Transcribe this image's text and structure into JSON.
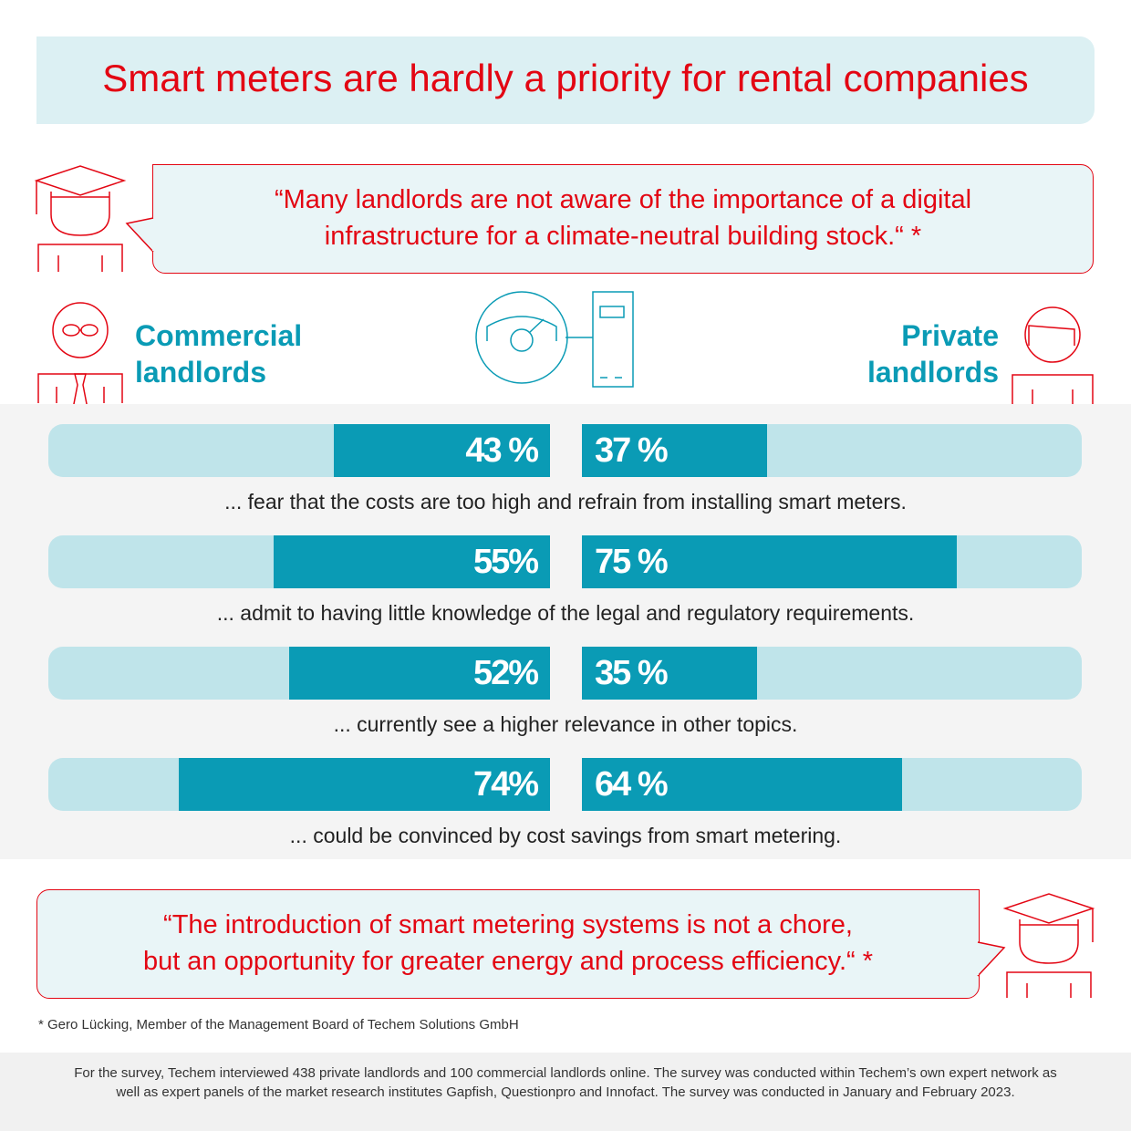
{
  "title": "Smart meters are hardly a priority for rental companies",
  "quote_top": {
    "line1": "“Many landlords are not aware of the importance of a digital",
    "line2": "infrastructure for a climate-neutral building stock.“ *"
  },
  "groups": {
    "left_line1": "Commercial",
    "left_line2": "landlords",
    "right_line1": "Private",
    "right_line2": "landlords"
  },
  "chart_data": {
    "type": "bar",
    "series": [
      {
        "name": "Commercial landlords",
        "values": [
          43,
          55,
          52,
          74
        ]
      },
      {
        "name": "Private landlords",
        "values": [
          37,
          75,
          35,
          64
        ]
      }
    ],
    "categories": [
      "... fear that the costs are too high and refrain from installing smart meters.",
      "... admit to having little knowledge of the legal and regulatory requirements.",
      "... currently see a higher relevance in other topics.",
      "... could be convinced by cost savings from smart metering."
    ],
    "labels_left": [
      "43 %",
      "55%",
      "52%",
      "74%"
    ],
    "labels_right": [
      "37 %",
      "75 %",
      "35 %",
      "64 %"
    ],
    "ylim": [
      0,
      100
    ],
    "colors": {
      "fill": "#0a9bb5",
      "track": "#bfe4ea"
    }
  },
  "quote_bottom": {
    "line1": "“The introduction of smart metering systems is not a chore,",
    "line2": "but an opportunity for greater energy and process efficiency.“ *"
  },
  "footnote": "* Gero Lücking, Member of the Management Board of Techem Solutions GmbH",
  "survey_note": "For the survey, Techem interviewed 438 private landlords and 100 commercial landlords online. The survey was conducted within Techem’s own expert network as well as expert panels of the market research institutes Gapfish, Questionpro and Innofact. The survey was conducted in January and February 2023.",
  "colors": {
    "red": "#e30613",
    "teal": "#0a9bb5",
    "light_teal": "#bfe4ea",
    "pale": "#dcf0f3"
  }
}
